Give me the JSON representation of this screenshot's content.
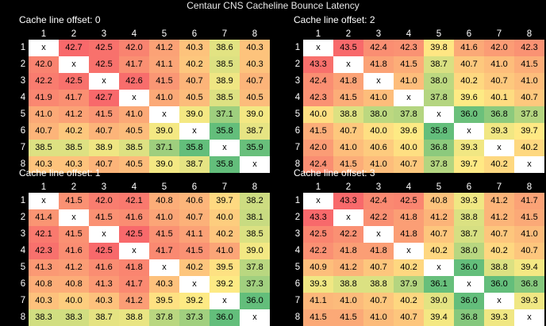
{
  "title": "Centaur CNS Cacheline Bounce Latency",
  "chart_data": [
    {
      "type": "heatmap",
      "title": "Cache line offset: 0",
      "x_labels": [
        "1",
        "2",
        "3",
        "4",
        "5",
        "6",
        "7",
        "8"
      ],
      "y_labels": [
        "1",
        "2",
        "3",
        "4",
        "5",
        "6",
        "7",
        "8"
      ],
      "diagonal_label": "x",
      "values": [
        [
          null,
          42.7,
          42.5,
          42.0,
          41.2,
          40.3,
          38.6,
          40.3
        ],
        [
          42.0,
          null,
          42.5,
          41.7,
          41.1,
          40.2,
          38.5,
          40.3
        ],
        [
          42.2,
          42.5,
          null,
          42.6,
          41.5,
          40.7,
          38.9,
          40.7
        ],
        [
          41.9,
          41.7,
          42.7,
          null,
          41.0,
          40.5,
          38.5,
          40.5
        ],
        [
          41.0,
          41.2,
          41.5,
          41.0,
          null,
          39.0,
          37.1,
          39.0
        ],
        [
          40.7,
          40.2,
          40.7,
          40.5,
          39.0,
          null,
          35.8,
          38.7
        ],
        [
          38.5,
          38.5,
          38.9,
          38.5,
          37.1,
          35.8,
          null,
          35.9
        ],
        [
          40.3,
          40.3,
          40.7,
          40.5,
          39.0,
          38.7,
          35.8,
          null
        ]
      ]
    },
    {
      "type": "heatmap",
      "title": "Cache line offset: 2",
      "x_labels": [
        "1",
        "2",
        "3",
        "4",
        "5",
        "6",
        "7",
        "8"
      ],
      "y_labels": [
        "1",
        "2",
        "3",
        "4",
        "5",
        "6",
        "7",
        "8"
      ],
      "diagonal_label": "x",
      "values": [
        [
          null,
          43.5,
          42.4,
          42.3,
          39.8,
          41.6,
          42.0,
          42.3
        ],
        [
          43.3,
          null,
          41.8,
          41.5,
          38.7,
          40.7,
          41.0,
          41.5
        ],
        [
          42.4,
          41.8,
          null,
          41.0,
          38.0,
          40.2,
          40.7,
          41.0
        ],
        [
          42.3,
          41.5,
          41.0,
          null,
          37.8,
          39.6,
          40.1,
          40.7
        ],
        [
          40.0,
          38.8,
          38.0,
          37.8,
          null,
          36.0,
          36.8,
          37.8
        ],
        [
          41.5,
          40.7,
          40.0,
          39.6,
          35.8,
          null,
          39.3,
          39.7
        ],
        [
          42.0,
          41.0,
          40.6,
          40.0,
          36.8,
          39.3,
          null,
          40.2
        ],
        [
          42.4,
          41.5,
          41.0,
          40.7,
          37.8,
          39.7,
          40.2,
          null
        ]
      ]
    },
    {
      "type": "heatmap",
      "title": "Cache line offset: 1",
      "x_labels": [
        "1",
        "2",
        "3",
        "4",
        "5",
        "6",
        "7",
        "8"
      ],
      "y_labels": [
        "1",
        "2",
        "3",
        "4",
        "5",
        "6",
        "7",
        "8"
      ],
      "diagonal_label": "x",
      "values": [
        [
          null,
          41.5,
          42.0,
          42.1,
          40.8,
          40.6,
          39.7,
          38.2
        ],
        [
          41.4,
          null,
          41.5,
          41.6,
          41.0,
          40.7,
          40.0,
          38.1
        ],
        [
          42.1,
          41.5,
          null,
          42.5,
          41.5,
          41.1,
          40.2,
          38.5
        ],
        [
          42.3,
          41.6,
          42.5,
          null,
          41.7,
          41.5,
          41.0,
          39.0
        ],
        [
          41.3,
          41.2,
          41.6,
          41.8,
          null,
          40.2,
          39.5,
          37.8
        ],
        [
          40.8,
          40.8,
          41.3,
          41.7,
          40.3,
          null,
          39.2,
          37.3
        ],
        [
          40.3,
          40.0,
          40.3,
          41.2,
          39.5,
          39.2,
          null,
          36.0
        ],
        [
          38.3,
          38.3,
          38.7,
          38.8,
          37.8,
          37.3,
          36.0,
          null
        ]
      ]
    },
    {
      "type": "heatmap",
      "title": "Cache line offset: 3",
      "x_labels": [
        "1",
        "2",
        "3",
        "4",
        "5",
        "6",
        "7",
        "8"
      ],
      "y_labels": [
        "1",
        "2",
        "3",
        "4",
        "5",
        "6",
        "7",
        "8"
      ],
      "diagonal_label": "x",
      "values": [
        [
          null,
          43.3,
          42.4,
          42.5,
          40.8,
          39.3,
          41.2,
          41.7
        ],
        [
          43.3,
          null,
          42.2,
          41.8,
          41.2,
          38.8,
          41.2,
          41.5
        ],
        [
          42.5,
          42.2,
          null,
          41.8,
          40.7,
          38.7,
          40.7,
          41.0
        ],
        [
          42.2,
          41.8,
          41.8,
          null,
          40.2,
          38.0,
          40.2,
          40.7
        ],
        [
          40.9,
          41.2,
          40.7,
          40.2,
          null,
          36.0,
          38.8,
          39.4
        ],
        [
          39.3,
          38.8,
          38.8,
          37.9,
          36.1,
          null,
          36.0,
          36.8
        ],
        [
          41.1,
          41.0,
          40.7,
          40.2,
          39.0,
          36.0,
          null,
          39.3
        ],
        [
          41.5,
          41.5,
          41.0,
          40.7,
          39.4,
          36.8,
          39.3,
          null
        ]
      ]
    }
  ]
}
